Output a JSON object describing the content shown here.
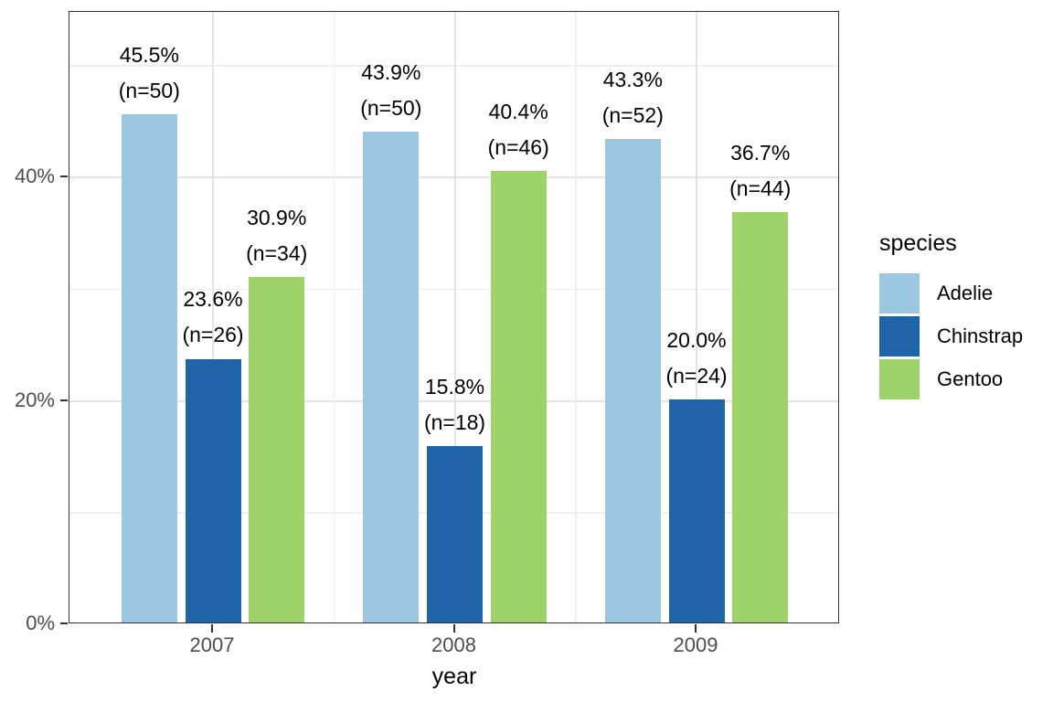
{
  "chart_data": {
    "type": "bar",
    "title": "",
    "xlabel": "year",
    "ylabel": "",
    "categories": [
      "2007",
      "2008",
      "2009"
    ],
    "series": [
      {
        "name": "Adelie",
        "color": "#9CC7E0",
        "values": [
          45.5,
          43.9,
          43.3
        ],
        "counts": [
          50,
          50,
          52
        ],
        "value_labels": [
          "45.5%",
          "43.9%",
          "43.3%"
        ],
        "count_labels": [
          "(n=50)",
          "(n=50)",
          "(n=52)"
        ]
      },
      {
        "name": "Chinstrap",
        "color": "#1F63A8",
        "values": [
          23.6,
          15.8,
          20.0
        ],
        "counts": [
          26,
          18,
          24
        ],
        "value_labels": [
          "23.6%",
          "15.8%",
          "20.0%"
        ],
        "count_labels": [
          "(n=26)",
          "(n=18)",
          "(n=24)"
        ]
      },
      {
        "name": "Gentoo",
        "color": "#9ED36A",
        "values": [
          30.9,
          40.4,
          36.7
        ],
        "counts": [
          34,
          46,
          44
        ],
        "value_labels": [
          "30.9%",
          "40.4%",
          "36.7%"
        ],
        "count_labels": [
          "(n=34)",
          "(n=46)",
          "(n=44)"
        ]
      }
    ],
    "y_axis": {
      "tick_values": [
        0,
        20,
        40
      ],
      "tick_labels": [
        "0%",
        "20%",
        "40%"
      ],
      "minor_tick_values": [
        10,
        30,
        50
      ],
      "range": [
        0,
        54.8
      ],
      "grid": true
    },
    "x_axis": {
      "tick_labels": [
        "2007",
        "2008",
        "2009"
      ]
    },
    "legend": {
      "title": "species",
      "position": "right",
      "entries": [
        "Adelie",
        "Chinstrap",
        "Gentoo"
      ]
    },
    "colors": {
      "grid_major": "#E4E4E4",
      "grid_minor": "#EFEFEF",
      "panel_border": "#333333",
      "tick": "#333333",
      "tick_label": "#4D4D4D",
      "text": "#000000"
    }
  }
}
